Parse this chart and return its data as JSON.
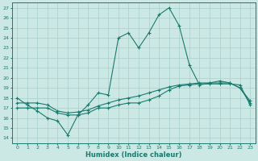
{
  "xlabel": "Humidex (Indice chaleur)",
  "xlim": [
    -0.5,
    23.5
  ],
  "ylim": [
    13.5,
    27.5
  ],
  "xticks": [
    0,
    1,
    2,
    3,
    4,
    5,
    6,
    7,
    8,
    9,
    10,
    11,
    12,
    13,
    14,
    15,
    16,
    17,
    18,
    19,
    20,
    21,
    22,
    23
  ],
  "yticks": [
    14,
    15,
    16,
    17,
    18,
    19,
    20,
    21,
    22,
    23,
    24,
    25,
    26,
    27
  ],
  "line_color": "#1a7a6e",
  "bg_color": "#cce8e4",
  "grid_color": "#a8d0cc",
  "line1_x": [
    0,
    1,
    2,
    3,
    4,
    5,
    6,
    7,
    8,
    9,
    10,
    11,
    12,
    13,
    14,
    15,
    16,
    17,
    18,
    19,
    20,
    21,
    22,
    23
  ],
  "line1_y": [
    18.0,
    17.3,
    16.7,
    16.0,
    15.7,
    14.3,
    16.3,
    17.3,
    18.5,
    18.3,
    24.0,
    24.5,
    23.0,
    24.5,
    26.3,
    27.0,
    25.2,
    21.3,
    19.3,
    19.5,
    19.7,
    19.5,
    19.0,
    17.7
  ],
  "line2_x": [
    0,
    1,
    2,
    3,
    4,
    5,
    6,
    7,
    8,
    9,
    10,
    11,
    12,
    13,
    14,
    15,
    16,
    17,
    18,
    19,
    20,
    21,
    22,
    23
  ],
  "line2_y": [
    17.5,
    17.5,
    17.5,
    17.3,
    16.7,
    16.5,
    16.6,
    16.8,
    17.2,
    17.5,
    17.8,
    18.0,
    18.2,
    18.5,
    18.8,
    19.1,
    19.3,
    19.4,
    19.5,
    19.5,
    19.5,
    19.5,
    19.0,
    17.5
  ],
  "line3_x": [
    0,
    1,
    2,
    3,
    4,
    5,
    6,
    7,
    8,
    9,
    10,
    11,
    12,
    13,
    14,
    15,
    16,
    17,
    18,
    19,
    20,
    21,
    22,
    23
  ],
  "line3_y": [
    17.0,
    17.0,
    17.0,
    17.0,
    16.5,
    16.3,
    16.3,
    16.5,
    17.0,
    17.0,
    17.3,
    17.5,
    17.5,
    17.8,
    18.2,
    18.8,
    19.2,
    19.3,
    19.4,
    19.4,
    19.4,
    19.4,
    19.3,
    17.3
  ]
}
